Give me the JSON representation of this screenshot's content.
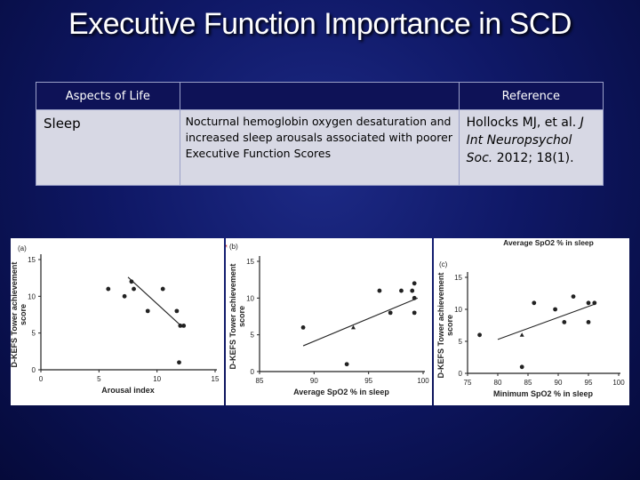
{
  "title": "Executive Function Importance in SCD",
  "table": {
    "headers": [
      "Aspects of Life",
      "",
      "Reference"
    ],
    "row": {
      "aspect": "Sleep",
      "description": "Nocturnal hemoglobin oxygen desaturation and increased sleep arousals associated with poorer Executive Function Scores",
      "reference_prefix": "Hollocks MJ, et al.",
      "reference_journal": "J Int Neuropsychol Soc.",
      "reference_suffix": "2012; 18(1)."
    }
  },
  "chart_data": [
    {
      "type": "scatter",
      "panel_label": "(a)",
      "title": "",
      "xlabel": "Arousal index",
      "ylabel": "D-KEFS Tower achievement score",
      "xlim": [
        0,
        15
      ],
      "ylim": [
        0,
        15
      ],
      "xticks": [
        0,
        5,
        10,
        15
      ],
      "yticks": [
        0,
        5,
        10,
        15
      ],
      "points": [
        [
          5.8,
          11
        ],
        [
          7.2,
          10
        ],
        [
          7.8,
          12
        ],
        [
          8.0,
          11
        ],
        [
          9.2,
          8
        ],
        [
          10.5,
          11
        ],
        [
          11.7,
          8
        ],
        [
          12.0,
          6
        ],
        [
          12.3,
          6
        ],
        [
          11.9,
          1
        ]
      ],
      "fit_line": [
        [
          7.5,
          12.6
        ],
        [
          12.2,
          5.8
        ]
      ]
    },
    {
      "type": "scatter",
      "panel_label": "(b)",
      "title": "",
      "xlabel": "Average SpO2 % in sleep",
      "ylabel": "D-KEFS Tower achievement score",
      "xlim": [
        85,
        100
      ],
      "ylim": [
        0,
        15
      ],
      "xticks": [
        85,
        90,
        95,
        100
      ],
      "yticks": [
        0,
        5,
        10,
        15
      ],
      "points": [
        [
          89,
          6
        ],
        [
          93,
          1
        ],
        [
          96,
          11
        ],
        [
          97,
          8
        ],
        [
          98,
          11
        ],
        [
          99,
          11
        ],
        [
          99.2,
          12
        ],
        [
          99.2,
          10
        ],
        [
          99.2,
          8
        ]
      ],
      "mean_point": [
        93.6,
        6
      ],
      "fit_line": [
        [
          89,
          3.5
        ],
        [
          99.5,
          10
        ]
      ],
      "symbol": "♂"
    },
    {
      "type": "scatter",
      "panel_label": "(c)",
      "title": "Average SpO2 % in sleep",
      "xlabel": "Minimum SpO2 % in sleep",
      "ylabel": "D-KEFS Tower achievement score",
      "xlim": [
        75,
        100
      ],
      "ylim": [
        0,
        15
      ],
      "xticks": [
        75,
        80,
        85,
        90,
        95,
        100
      ],
      "yticks": [
        0,
        5,
        10,
        15
      ],
      "points": [
        [
          77,
          6
        ],
        [
          84,
          1
        ],
        [
          86,
          11
        ],
        [
          89.5,
          10
        ],
        [
          91,
          8
        ],
        [
          92.5,
          12
        ],
        [
          95,
          8
        ],
        [
          95,
          11
        ],
        [
          96,
          11
        ]
      ],
      "mean_point": [
        84,
        6
      ],
      "fit_line": [
        [
          80,
          5.3
        ],
        [
          96,
          10.8
        ]
      ]
    }
  ]
}
